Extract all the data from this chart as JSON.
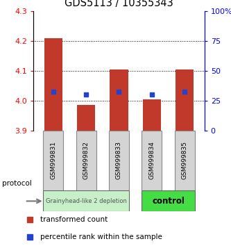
{
  "title": "GDS5113 / 10355343",
  "samples": [
    "GSM999831",
    "GSM999832",
    "GSM999833",
    "GSM999834",
    "GSM999835"
  ],
  "bar_tops": [
    4.21,
    3.985,
    4.105,
    4.005,
    4.105
  ],
  "bar_bottoms": [
    3.9,
    3.9,
    3.9,
    3.9,
    3.9
  ],
  "blue_markers": [
    4.03,
    4.02,
    4.03,
    4.02,
    4.03
  ],
  "ylim": [
    3.9,
    4.3
  ],
  "y2lim": [
    0,
    100
  ],
  "yticks": [
    3.9,
    4.0,
    4.1,
    4.2,
    4.3
  ],
  "y2ticks": [
    0,
    25,
    50,
    75,
    100
  ],
  "y2ticklabels": [
    "0",
    "25",
    "50",
    "75",
    "100%"
  ],
  "bar_color": "#c0392b",
  "blue_color": "#2244cc",
  "dotted_yvals": [
    4.0,
    4.1,
    4.2
  ],
  "group0_samples": [
    0,
    1,
    2
  ],
  "group1_samples": [
    3,
    4
  ],
  "group0_label": "Grainyhead-like 2 depletion",
  "group0_color": "#c8f0c8",
  "group1_label": "control",
  "group1_color": "#44dd44",
  "sample_box_color": "#d4d4d4",
  "sample_box_edge": "#888888",
  "protocol_label": "protocol",
  "legend": [
    {
      "color": "#c0392b",
      "label": "transformed count"
    },
    {
      "color": "#2244cc",
      "label": "percentile rank within the sample"
    }
  ]
}
